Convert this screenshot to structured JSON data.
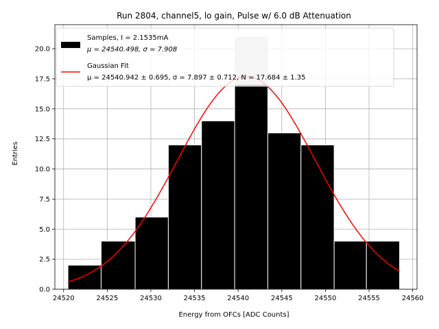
{
  "chart_data": {
    "type": "bar",
    "title": "Run 2804, channel5, lo gain, Pulse w/ 6.0 dB Attenuation",
    "xlabel": "Energy from OFCs [ADC Counts]",
    "ylabel": "Entries",
    "xlim": [
      24519.0,
      24560.5
    ],
    "ylim": [
      0,
      22
    ],
    "xticks": [
      24520,
      24525,
      24530,
      24535,
      24540,
      24545,
      24550,
      24555,
      24560
    ],
    "yticks": [
      0.0,
      2.5,
      5.0,
      7.5,
      10.0,
      12.5,
      15.0,
      17.5,
      20.0
    ],
    "ytick_labels": [
      "0.0",
      "2.5",
      "5.0",
      "7.5",
      "10.0",
      "12.5",
      "15.0",
      "17.5",
      "20.0"
    ],
    "grid": true,
    "legend_position": "top-left",
    "bins": [
      {
        "start": 24520.5,
        "end": 24524.3,
        "count": 2,
        "color": "#000000"
      },
      {
        "start": 24524.3,
        "end": 24528.2,
        "count": 4,
        "color": "#000000"
      },
      {
        "start": 24528.2,
        "end": 24532.0,
        "count": 6,
        "color": "#000000"
      },
      {
        "start": 24532.0,
        "end": 24535.8,
        "count": 12,
        "color": "#000000"
      },
      {
        "start": 24535.8,
        "end": 24539.6,
        "count": 14,
        "color": "#000000"
      },
      {
        "start": 24539.6,
        "end": 24543.4,
        "count": 21,
        "color": "#000000",
        "overlay_count": 17,
        "overlay_color": "#cbcbcb"
      },
      {
        "start": 24543.4,
        "end": 24547.2,
        "count": 13,
        "color": "#000000"
      },
      {
        "start": 24547.2,
        "end": 24551.0,
        "count": 12,
        "color": "#000000"
      },
      {
        "start": 24551.0,
        "end": 24554.7,
        "count": 4,
        "color": "#000000"
      },
      {
        "start": 24554.7,
        "end": 24558.5,
        "count": 4,
        "color": "#000000"
      }
    ],
    "fit": {
      "mu": 24540.942,
      "sigma": 7.897,
      "N": 17.684,
      "x_range": [
        24520.5,
        24558.5
      ],
      "color": "#ff0000"
    },
    "legend": [
      {
        "kind": "patch",
        "color": "#000000",
        "line1": "Samples, I = 2.1535mA",
        "line2_mu": "μ = 24540.498, ",
        "line2_sigma": "σ = 7.908"
      },
      {
        "kind": "line",
        "color": "#ff0000",
        "line1": "Gaussian Fit",
        "line2": "μ = 24540.942 ± 0.695, σ = 7.897 ± 0.712, N = 17.684 ± 1.35"
      }
    ]
  }
}
